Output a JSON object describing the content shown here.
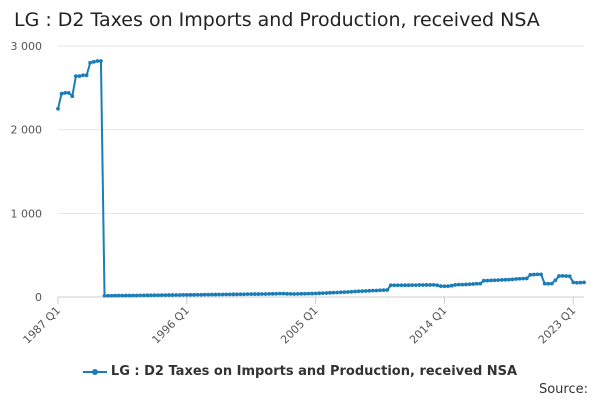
{
  "chart_data": {
    "type": "line",
    "title": "LG : D2 Taxes on Imports and Production, received NSA",
    "xlabel": "",
    "ylabel": "",
    "x_tick_labels": [
      "1987 Q1",
      "1996 Q1",
      "2005 Q1",
      "2014 Q1",
      "2023 Q1"
    ],
    "x_tick_indices": [
      0,
      36,
      72,
      108,
      144
    ],
    "y_tick_labels": [
      "0",
      "1 000",
      "2 000",
      "3 000"
    ],
    "y_ticks": [
      0,
      1000,
      2000,
      3000
    ],
    "ylim": [
      0,
      3000
    ],
    "grid": "horizontal",
    "legend_position": "bottom",
    "series": [
      {
        "name": "LG : D2 Taxes on Imports and Production, received NSA",
        "color": "#1a7db8",
        "start": "1987 Q1",
        "values": [
          2250,
          2430,
          2440,
          2440,
          2400,
          2640,
          2640,
          2650,
          2650,
          2800,
          2810,
          2820,
          2820,
          15,
          15,
          15,
          16,
          16,
          16,
          17,
          17,
          18,
          18,
          19,
          19,
          20,
          20,
          21,
          21,
          22,
          22,
          23,
          23,
          24,
          24,
          25,
          25,
          26,
          26,
          27,
          27,
          28,
          28,
          29,
          29,
          30,
          30,
          31,
          31,
          32,
          32,
          33,
          33,
          34,
          34,
          35,
          35,
          36,
          36,
          37,
          38,
          39,
          40,
          40,
          38,
          37,
          36,
          37,
          38,
          39,
          40,
          41,
          42,
          44,
          46,
          48,
          50,
          52,
          54,
          56,
          58,
          60,
          62,
          66,
          68,
          70,
          72,
          74,
          76,
          78,
          80,
          82,
          84,
          140,
          140,
          140,
          140,
          141,
          141,
          142,
          142,
          143,
          143,
          144,
          144,
          145,
          140,
          130,
          128,
          130,
          135,
          145,
          148,
          148,
          150,
          152,
          155,
          158,
          160,
          195,
          196,
          198,
          200,
          202,
          204,
          206,
          208,
          210,
          215,
          218,
          220,
          222,
          265,
          268,
          270,
          270,
          160,
          158,
          160,
          200,
          250,
          252,
          250,
          248,
          175,
          170,
          172,
          175
        ]
      }
    ]
  },
  "source_label": "Source:"
}
